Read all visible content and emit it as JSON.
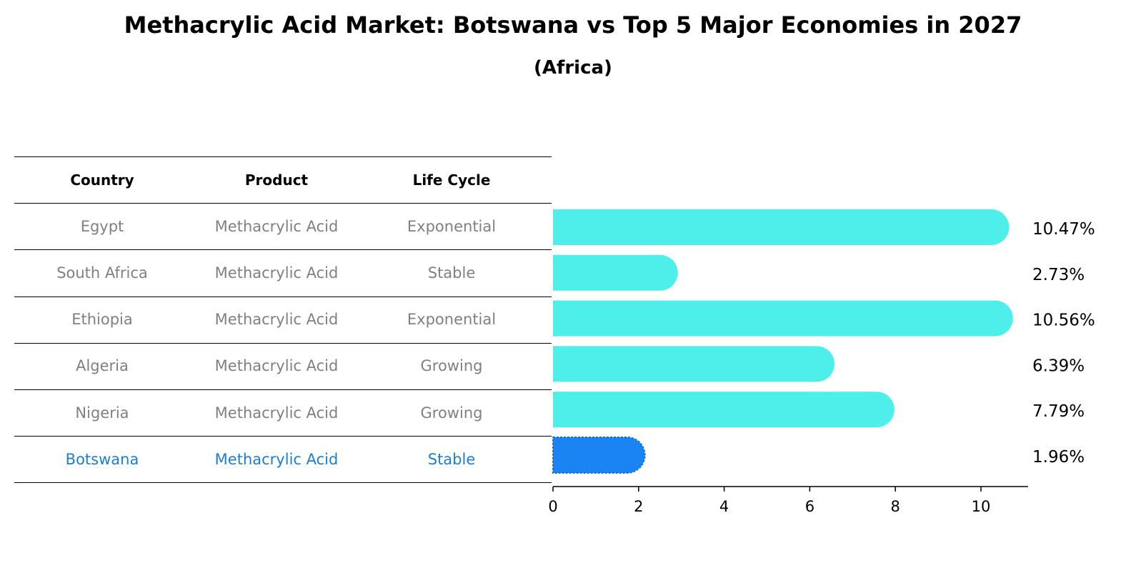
{
  "title": "Methacrylic Acid Market: Botswana vs Top 5 Major Economies in 2027",
  "subtitle": "(Africa)",
  "table": {
    "headers": [
      "Country",
      "Product",
      "Life Cycle"
    ],
    "rows": [
      {
        "country": "Egypt",
        "product": "Methacrylic Acid",
        "life_cycle": "Exponential",
        "highlight": false
      },
      {
        "country": "South Africa",
        "product": "Methacrylic Acid",
        "life_cycle": "Stable",
        "highlight": false
      },
      {
        "country": "Ethiopia",
        "product": "Methacrylic Acid",
        "life_cycle": "Exponential",
        "highlight": false
      },
      {
        "country": "Algeria",
        "product": "Methacrylic Acid",
        "life_cycle": "Growing",
        "highlight": false
      },
      {
        "country": "Nigeria",
        "product": "Methacrylic Acid",
        "life_cycle": "Growing",
        "highlight": false
      },
      {
        "country": "Botswana",
        "product": "Methacrylic Acid",
        "life_cycle": "Stable",
        "highlight": true
      }
    ]
  },
  "chart_data": {
    "type": "bar",
    "orientation": "horizontal",
    "title": "Methacrylic Acid Market: Botswana vs Top 5 Major Economies in 2027",
    "subtitle": "(Africa)",
    "categories": [
      "Egypt",
      "South Africa",
      "Ethiopia",
      "Algeria",
      "Nigeria",
      "Botswana"
    ],
    "values": [
      10.47,
      2.73,
      10.56,
      6.39,
      7.79,
      1.96
    ],
    "value_labels": [
      "10.47%",
      "2.73%",
      "10.56%",
      "6.39%",
      "7.79%",
      "1.96%"
    ],
    "xlim": [
      0,
      11.1
    ],
    "xticks": [
      0,
      2,
      4,
      6,
      8,
      10
    ],
    "xlabel": "",
    "ylabel": "",
    "grid": false,
    "colors": {
      "default": "#4eeeea",
      "highlight": "#1a84f2",
      "highlight_category": "Botswana"
    }
  }
}
